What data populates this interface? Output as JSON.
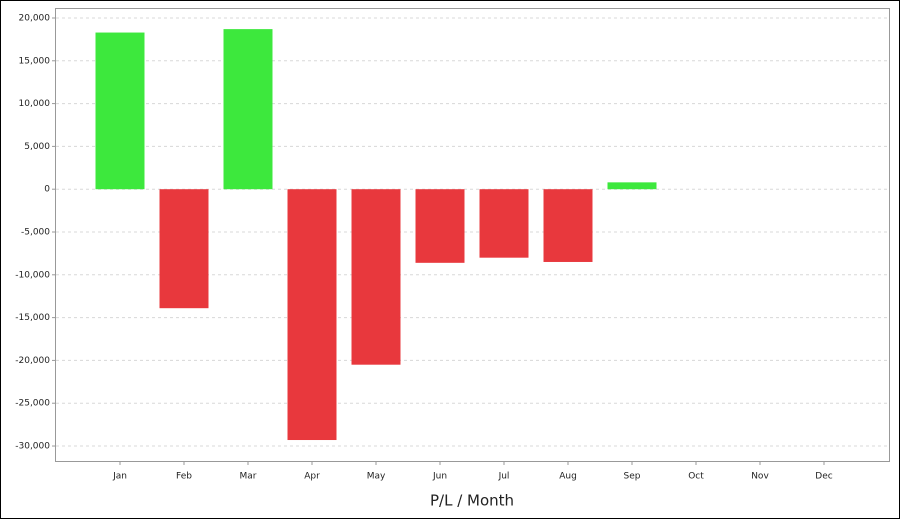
{
  "chart_data": {
    "type": "bar",
    "x_label": "P/L / Month",
    "categories": [
      "Jan",
      "Feb",
      "Mar",
      "Apr",
      "May",
      "Jun",
      "Jul",
      "Aug",
      "Sep",
      "Oct",
      "Nov",
      "Dec"
    ],
    "values": [
      18300,
      -13900,
      18700,
      -29300,
      -20500,
      -8600,
      -8000,
      -8500,
      800,
      null,
      null,
      null
    ],
    "positive_color": "#3de83d",
    "negative_color": "#e8383d",
    "ylim": [
      -31750,
      21050
    ],
    "yticks": [
      {
        "value": -30000,
        "label": "-30,000"
      },
      {
        "value": -25000,
        "label": "-25,000"
      },
      {
        "value": -20000,
        "label": "-20,000"
      },
      {
        "value": -15000,
        "label": "-15,000"
      },
      {
        "value": -10000,
        "label": "-10,000"
      },
      {
        "value": -5000,
        "label": "-5,000"
      },
      0,
      {
        "value": 5000,
        "label": "5,000"
      },
      {
        "value": 10000,
        "label": "10,000"
      },
      {
        "value": 15000,
        "label": "15,000"
      },
      {
        "value": 20000,
        "label": "20,000"
      }
    ],
    "grid": true
  }
}
